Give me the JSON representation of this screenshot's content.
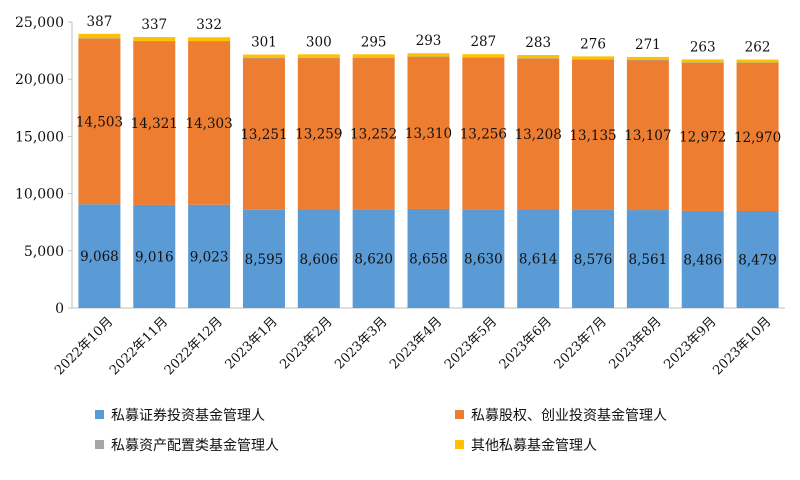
{
  "chart_data": {
    "type": "bar",
    "stacked": true,
    "categories": [
      "2022年10月",
      "2022年11月",
      "2022年12月",
      "2023年1月",
      "2023年2月",
      "2023年3月",
      "2023年4月",
      "2023年5月",
      "2023年6月",
      "2023年7月",
      "2023年8月",
      "2023年9月",
      "2023年10月"
    ],
    "series": [
      {
        "name": "私募证券投资基金管理人",
        "color": "#5b9bd5",
        "values": [
          9068,
          9016,
          9023,
          8595,
          8606,
          8620,
          8658,
          8630,
          8614,
          8576,
          8561,
          8486,
          8479
        ],
        "labels": [
          "9,068",
          "9,016",
          "9,023",
          "8,595",
          "8,606",
          "8,620",
          "8,658",
          "8,630",
          "8,614",
          "8,576",
          "8,561",
          "8,486",
          "8,479"
        ]
      },
      {
        "name": "私募股权、创业投资基金管理人",
        "color": "#ed7d31",
        "values": [
          14503,
          14321,
          14303,
          13251,
          13259,
          13252,
          13310,
          13256,
          13208,
          13135,
          13107,
          12972,
          12970
        ],
        "labels": [
          "14,503",
          "14,321",
          "14,303",
          "13,251",
          "13,259",
          "13,252",
          "13,310",
          "13,256",
          "13,208",
          "13,135",
          "13,107",
          "12,972",
          "12,970"
        ]
      },
      {
        "name": "私募资产配置类基金管理人",
        "color": "#a5a5a5",
        "values": [
          9,
          9,
          9,
          9,
          9,
          9,
          9,
          9,
          9,
          9,
          9,
          9,
          9
        ],
        "labels": []
      },
      {
        "name": "其他私募基金管理人",
        "color": "#ffc000",
        "values": [
          387,
          337,
          332,
          301,
          300,
          295,
          293,
          287,
          283,
          276,
          271,
          263,
          262
        ],
        "labels": [
          "387",
          "337",
          "332",
          "301",
          "300",
          "295",
          "293",
          "287",
          "283",
          "276",
          "271",
          "263",
          "262"
        ]
      }
    ],
    "yticks": [
      "0",
      "5,000",
      "10,000",
      "15,000",
      "20,000",
      "25,000"
    ],
    "ylim": [
      0,
      25000
    ],
    "grid": false,
    "legend_position": "bottom"
  }
}
